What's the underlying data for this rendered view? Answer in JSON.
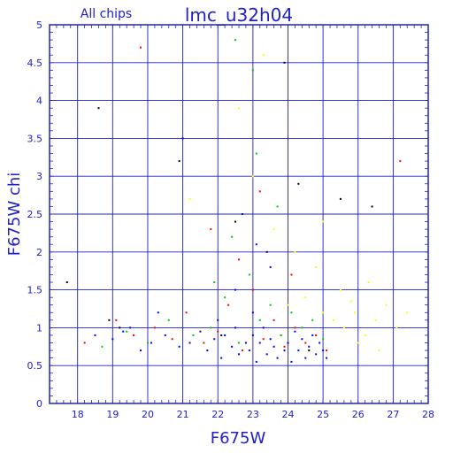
{
  "header": {
    "left_label": "All chips",
    "title": "lmc_u32h04"
  },
  "chart_data": {
    "type": "scatter",
    "title": "lmc_u32h04",
    "subtitle": "All chips",
    "xlabel": "F675W",
    "ylabel": "F675W chi",
    "xlim": [
      17.2,
      28
    ],
    "ylim": [
      0,
      5
    ],
    "grid": true,
    "x_ticks": [
      "18",
      "19",
      "20",
      "21",
      "22",
      "23",
      "24",
      "25",
      "26",
      "27",
      "28"
    ],
    "y_ticks": [
      "0",
      "0.5",
      "1",
      "1.5",
      "2",
      "2.5",
      "3",
      "3.5",
      "4",
      "4.5",
      "5"
    ],
    "colors": {
      "axes": "#2020c8",
      "grid": "#2020c8",
      "background": "#ffffff"
    },
    "series": [
      {
        "color": "#0000ff",
        "points": [
          [
            18.5,
            0.9
          ],
          [
            19.0,
            0.85
          ],
          [
            19.3,
            0.95
          ],
          [
            19.8,
            0.7
          ],
          [
            20.1,
            0.8
          ],
          [
            20.5,
            0.9
          ],
          [
            20.9,
            0.75
          ],
          [
            21.2,
            0.8
          ],
          [
            21.5,
            0.95
          ],
          [
            21.7,
            0.7
          ],
          [
            21.9,
            0.85
          ],
          [
            22.1,
            0.6
          ],
          [
            22.2,
            0.9
          ],
          [
            22.4,
            0.75
          ],
          [
            22.5,
            1.0
          ],
          [
            22.6,
            0.65
          ],
          [
            22.8,
            0.8
          ],
          [
            22.9,
            0.7
          ],
          [
            23.0,
            0.9
          ],
          [
            23.1,
            0.55
          ],
          [
            23.2,
            0.8
          ],
          [
            23.3,
            1.0
          ],
          [
            23.4,
            0.65
          ],
          [
            23.5,
            0.85
          ],
          [
            23.6,
            0.75
          ],
          [
            23.7,
            0.6
          ],
          [
            23.8,
            0.9
          ],
          [
            23.9,
            0.7
          ],
          [
            24.0,
            0.8
          ],
          [
            24.1,
            0.55
          ],
          [
            24.2,
            0.95
          ],
          [
            24.3,
            0.7
          ],
          [
            24.4,
            0.85
          ],
          [
            24.5,
            0.6
          ],
          [
            24.6,
            0.75
          ],
          [
            24.7,
            0.9
          ],
          [
            24.8,
            0.65
          ],
          [
            24.9,
            0.8
          ],
          [
            25.0,
            0.7
          ],
          [
            25.1,
            0.6
          ],
          [
            22.0,
            1.1
          ],
          [
            23.0,
            1.2
          ],
          [
            24.0,
            1.3
          ],
          [
            22.5,
            1.5
          ],
          [
            23.5,
            1.8
          ],
          [
            23.1,
            2.1
          ],
          [
            22.7,
            2.5
          ],
          [
            21.0,
            3.5
          ],
          [
            20.3,
            1.2
          ],
          [
            19.5,
            1.0
          ]
        ]
      },
      {
        "color": "#ff0000",
        "points": [
          [
            18.2,
            0.8
          ],
          [
            19.1,
            1.1
          ],
          [
            19.6,
            0.9
          ],
          [
            20.2,
            1.0
          ],
          [
            20.7,
            0.85
          ],
          [
            21.1,
            1.2
          ],
          [
            21.6,
            0.8
          ],
          [
            22.0,
            0.95
          ],
          [
            22.3,
            1.3
          ],
          [
            22.7,
            0.7
          ],
          [
            23.0,
            1.5
          ],
          [
            23.3,
            0.85
          ],
          [
            23.6,
            1.1
          ],
          [
            23.9,
            0.75
          ],
          [
            24.2,
            1.0
          ],
          [
            24.5,
            0.8
          ],
          [
            24.8,
            0.9
          ],
          [
            25.1,
            0.7
          ],
          [
            23.2,
            2.8
          ],
          [
            22.6,
            1.9
          ],
          [
            21.8,
            2.3
          ],
          [
            24.1,
            1.7
          ],
          [
            19.8,
            4.7
          ],
          [
            27.2,
            3.2
          ]
        ]
      },
      {
        "color": "#00cc00",
        "points": [
          [
            18.7,
            0.75
          ],
          [
            19.4,
            0.95
          ],
          [
            20.0,
            0.8
          ],
          [
            20.6,
            1.1
          ],
          [
            21.3,
            0.9
          ],
          [
            21.8,
            1.0
          ],
          [
            22.2,
            1.4
          ],
          [
            22.6,
            0.8
          ],
          [
            22.9,
            1.7
          ],
          [
            23.2,
            1.1
          ],
          [
            23.5,
            1.3
          ],
          [
            23.8,
            0.9
          ],
          [
            24.1,
            1.2
          ],
          [
            24.4,
            1.0
          ],
          [
            24.7,
            1.1
          ],
          [
            25.0,
            0.85
          ],
          [
            23.1,
            3.3
          ],
          [
            22.4,
            2.2
          ],
          [
            23.7,
            2.6
          ],
          [
            21.9,
            1.6
          ],
          [
            22.5,
            4.8
          ],
          [
            23.0,
            4.4
          ]
        ]
      },
      {
        "color": "#ffff00",
        "points": [
          [
            24.0,
            1.3
          ],
          [
            24.5,
            1.4
          ],
          [
            25.0,
            1.2
          ],
          [
            25.3,
            1.1
          ],
          [
            25.6,
            1.0
          ],
          [
            25.9,
            1.2
          ],
          [
            26.2,
            0.9
          ],
          [
            26.5,
            1.1
          ],
          [
            26.8,
            1.3
          ],
          [
            27.1,
            1.0
          ],
          [
            27.4,
            1.2
          ],
          [
            25.5,
            1.5
          ],
          [
            26.0,
            0.8
          ],
          [
            26.6,
            0.7
          ],
          [
            24.8,
            1.8
          ],
          [
            24.2,
            2.0
          ],
          [
            23.6,
            2.3
          ],
          [
            23.0,
            3.0
          ],
          [
            23.3,
            4.6
          ],
          [
            22.6,
            3.9
          ],
          [
            25.0,
            2.4
          ],
          [
            21.2,
            2.7
          ],
          [
            26.3,
            1.6
          ],
          [
            25.8,
            1.35
          ]
        ]
      },
      {
        "color": "#000000",
        "points": [
          [
            17.7,
            1.6
          ],
          [
            18.6,
            3.9
          ],
          [
            19.2,
            1.0
          ],
          [
            20.9,
            3.2
          ],
          [
            22.5,
            2.4
          ],
          [
            23.4,
            2.0
          ],
          [
            24.3,
            2.9
          ],
          [
            25.5,
            2.7
          ],
          [
            26.4,
            2.6
          ],
          [
            23.9,
            4.5
          ],
          [
            18.9,
            1.1
          ],
          [
            24.6,
            0.7
          ],
          [
            22.1,
            0.9
          ]
        ]
      }
    ]
  }
}
